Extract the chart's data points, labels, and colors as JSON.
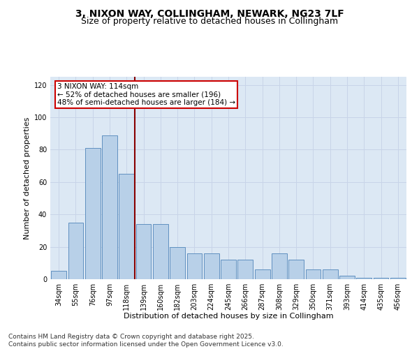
{
  "title_line1": "3, NIXON WAY, COLLINGHAM, NEWARK, NG23 7LF",
  "title_line2": "Size of property relative to detached houses in Collingham",
  "xlabel": "Distribution of detached houses by size in Collingham",
  "ylabel": "Number of detached properties",
  "categories": [
    "34sqm",
    "55sqm",
    "76sqm",
    "97sqm",
    "118sqm",
    "139sqm",
    "160sqm",
    "182sqm",
    "203sqm",
    "224sqm",
    "245sqm",
    "266sqm",
    "287sqm",
    "308sqm",
    "329sqm",
    "350sqm",
    "371sqm",
    "393sqm",
    "414sqm",
    "435sqm",
    "456sqm"
  ],
  "values": [
    5,
    35,
    81,
    89,
    65,
    34,
    34,
    20,
    16,
    16,
    12,
    12,
    6,
    16,
    12,
    6,
    6,
    2,
    1,
    1,
    1
  ],
  "bar_color": "#b8d0e8",
  "bar_edge_color": "#6090c0",
  "vline_x": 4.5,
  "vline_color": "#880000",
  "annotation_text": "3 NIXON WAY: 114sqm\n← 52% of detached houses are smaller (196)\n48% of semi-detached houses are larger (184) →",
  "annotation_box_color": "#ffffff",
  "annotation_box_edge": "#cc0000",
  "ylim": [
    0,
    125
  ],
  "yticks": [
    0,
    20,
    40,
    60,
    80,
    100,
    120
  ],
  "grid_color": "#c8d4e8",
  "background_color": "#dce8f4",
  "footer_line1": "Contains HM Land Registry data © Crown copyright and database right 2025.",
  "footer_line2": "Contains public sector information licensed under the Open Government Licence v3.0.",
  "title_fontsize": 10,
  "subtitle_fontsize": 9,
  "axis_label_fontsize": 8,
  "tick_fontsize": 7,
  "annotation_fontsize": 7.5,
  "footer_fontsize": 6.5
}
